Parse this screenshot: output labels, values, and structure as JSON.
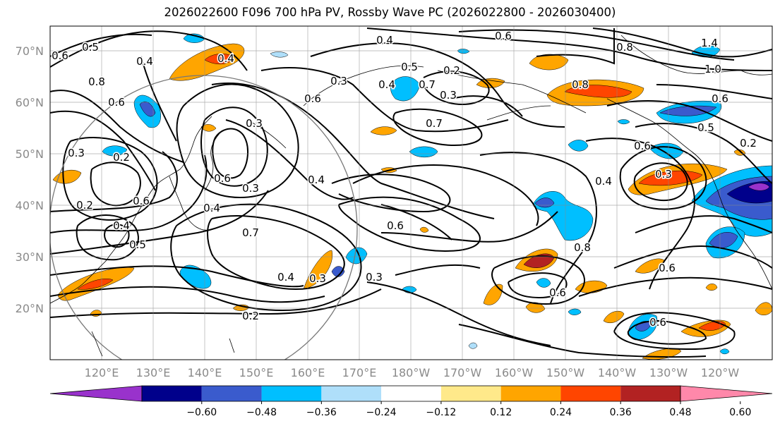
{
  "title": "2026022600 F096 700 hPa PV, Rossby Wave PC (2026022800 - 2026030400)",
  "lat_labels": [
    "70°N",
    "60°N",
    "50°N",
    "40°N",
    "30°N",
    "20°N"
  ],
  "lon_labels": [
    "120°E",
    "130°E",
    "140°E",
    "150°E",
    "160°E",
    "170°E",
    "180°W",
    "170°W",
    "160°W",
    "150°W",
    "140°W",
    "130°W",
    "120°W"
  ],
  "contour_labels": [
    "0.4",
    "0.6",
    "0.8",
    "1.4",
    "1.0",
    "0.5",
    "0.6",
    "0.8",
    "0.6",
    "0.4",
    "0.4",
    "0.5",
    "0.7",
    "0.3",
    "0.6",
    "0.3",
    "0.2",
    "0.3",
    "0.7",
    "0.4",
    "0.8",
    "0.6",
    "0.5",
    "0.2",
    "0.6",
    "0.3",
    "0.4",
    "0.2",
    "0.3",
    "0.6",
    "0.3",
    "0.4",
    "0.2",
    "0.6",
    "0.4",
    "0.5",
    "0.4",
    "0.6",
    "0.7",
    "0.4",
    "0.3",
    "0.3",
    "0.2",
    "0.8",
    "0.6",
    "0.6",
    "0.6"
  ],
  "colorbar": {
    "ticks": [
      "−0.60",
      "−0.48",
      "−0.36",
      "−0.24",
      "−0.12",
      "0.12",
      "0.24",
      "0.36",
      "0.48",
      "0.60"
    ],
    "colors": [
      "#9932cc",
      "#00008b",
      "#3a5bcd",
      "#00bfff",
      "#afdffa",
      "#ffffff",
      "#ffe98a",
      "#ffa500",
      "#ff4500",
      "#b22222",
      "#ff88aa"
    ]
  }
}
